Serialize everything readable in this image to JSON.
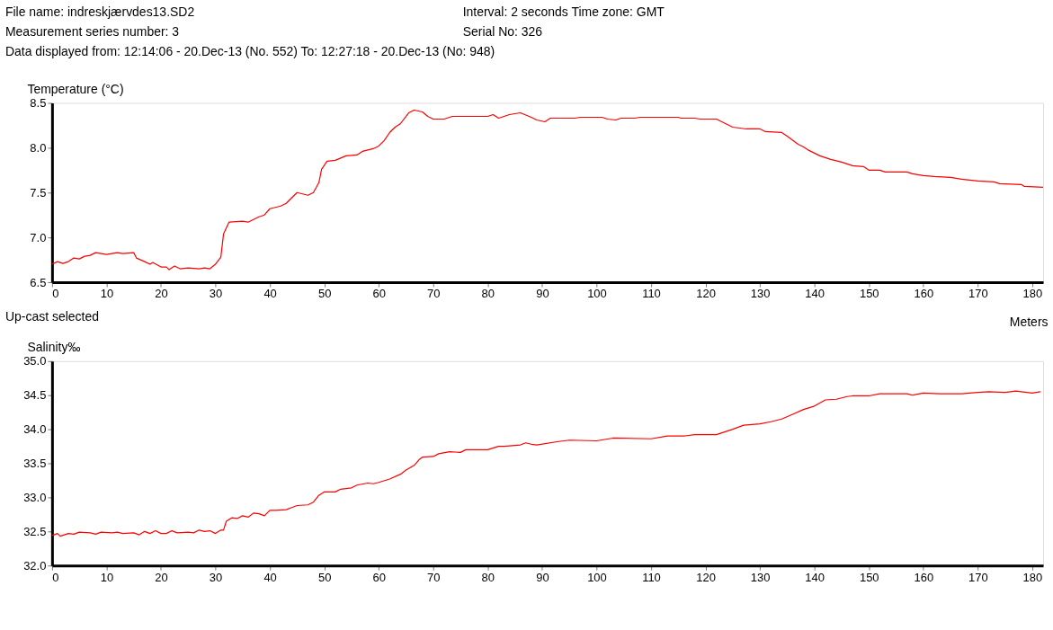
{
  "chart_data": [
    {
      "type": "line",
      "ylabel": "Temperature (°C)",
      "xlabel": "Meters",
      "xlim": [
        0,
        182
      ],
      "xticks": [
        0,
        10,
        20,
        30,
        40,
        50,
        60,
        70,
        80,
        90,
        100,
        110,
        120,
        130,
        140,
        150,
        160,
        170,
        180
      ],
      "ylim": [
        6.5,
        8.5
      ],
      "yticks": [
        {
          "value": 6.5,
          "label": "6.5"
        },
        {
          "value": 7,
          "label": "7.0"
        },
        {
          "value": 7.5,
          "label": "7.5"
        },
        {
          "value": 8,
          "label": "8.0"
        },
        {
          "value": 8.5,
          "label": "8.5"
        }
      ],
      "grid": false,
      "marker": "none",
      "annotations": [
        "File name: indreskjærvdes13.SD2",
        "Interval: 2 seconds    Time zone: GMT",
        "Measurement series number: 3",
        "Serial No: 326",
        "Data displayed from: 12:14:06 - 20.Dec-13 (No. 552)   To: 12:27:18 - 20.Dec-13 (No: 948)",
        "Up-cast selected"
      ],
      "x": [
        0,
        1,
        2,
        3,
        4,
        5,
        6,
        7,
        8,
        10,
        12,
        13,
        15,
        15.5,
        17,
        18,
        18.5,
        20,
        21,
        21.5,
        22.5,
        23.5,
        25,
        27,
        28,
        29,
        30,
        31,
        31.5,
        32.5,
        35,
        36,
        38,
        39,
        40,
        42,
        43,
        45,
        47,
        48,
        49,
        49.5,
        50.5,
        52,
        54,
        56,
        57,
        59,
        60,
        61,
        62,
        63,
        64,
        65.5,
        66.5,
        68,
        69,
        70,
        72,
        73.5,
        80,
        81,
        82,
        84,
        86,
        88,
        89,
        90.5,
        91.5,
        96,
        97,
        101,
        102,
        103.5,
        104.5,
        107,
        108,
        115,
        115.5,
        118,
        119,
        122,
        123,
        125,
        127.5,
        130,
        131,
        134,
        135,
        137,
        138,
        139,
        141,
        143,
        145,
        147,
        149,
        150,
        152,
        153,
        157,
        158,
        160,
        162,
        165,
        167,
        170,
        173,
        174,
        178,
        178.5,
        182
      ],
      "series": [
        {
          "color": "#ff0000",
          "values": [
            6.7,
            6.73,
            6.71,
            6.73,
            6.77,
            6.76,
            6.79,
            6.8,
            6.83,
            6.81,
            6.83,
            6.82,
            6.83,
            6.77,
            6.73,
            6.7,
            6.72,
            6.67,
            6.67,
            6.64,
            6.68,
            6.65,
            6.66,
            6.65,
            6.66,
            6.65,
            6.7,
            6.78,
            7.04,
            7.17,
            7.18,
            7.17,
            7.23,
            7.25,
            7.32,
            7.35,
            7.38,
            7.5,
            7.47,
            7.5,
            7.61,
            7.76,
            7.85,
            7.86,
            7.91,
            7.92,
            7.96,
            7.99,
            8.02,
            8.08,
            8.17,
            8.23,
            8.27,
            8.39,
            8.42,
            8.4,
            8.35,
            8.32,
            8.32,
            8.35,
            8.35,
            8.37,
            8.33,
            8.37,
            8.39,
            8.34,
            8.31,
            8.29,
            8.33,
            8.33,
            8.34,
            8.34,
            8.32,
            8.31,
            8.33,
            8.33,
            8.34,
            8.34,
            8.33,
            8.33,
            8.32,
            8.32,
            8.29,
            8.23,
            8.21,
            8.21,
            8.18,
            8.17,
            8.13,
            8.04,
            8.01,
            7.97,
            7.91,
            7.87,
            7.84,
            7.8,
            7.79,
            7.75,
            7.75,
            7.73,
            7.73,
            7.71,
            7.69,
            7.68,
            7.67,
            7.65,
            7.63,
            7.62,
            7.6,
            7.59,
            7.57,
            7.56
          ]
        }
      ]
    },
    {
      "type": "line",
      "ylabel": "Salinity‰",
      "xlim": [
        0,
        182
      ],
      "xticks": [
        0,
        10,
        20,
        30,
        40,
        50,
        60,
        70,
        80,
        90,
        100,
        110,
        120,
        130,
        140,
        150,
        160,
        170,
        180
      ],
      "ylim": [
        32,
        35
      ],
      "yticks": [
        {
          "value": 32,
          "label": "32.0"
        },
        {
          "value": 32.5,
          "label": "32.5"
        },
        {
          "value": 33,
          "label": "33.0"
        },
        {
          "value": 33.5,
          "label": "33.5"
        },
        {
          "value": 34,
          "label": "34.0"
        },
        {
          "value": 34.5,
          "label": "34.5"
        },
        {
          "value": 35,
          "label": "35.0"
        }
      ],
      "grid": false,
      "marker": "none",
      "x": [
        0,
        1,
        1.5,
        3,
        4,
        5,
        7,
        8,
        9,
        11,
        12,
        13,
        15,
        16,
        17,
        18,
        19,
        20,
        21,
        22,
        23,
        25,
        26,
        27,
        28,
        29,
        30,
        31,
        31.5,
        32,
        33,
        34,
        35,
        36,
        37,
        38,
        39,
        40,
        41,
        43,
        44,
        45,
        47,
        48,
        49,
        50,
        52,
        53,
        55,
        56,
        58,
        59,
        60,
        62,
        64,
        65,
        66.5,
        67.5,
        68,
        70,
        71,
        73,
        75,
        76,
        80,
        82,
        83,
        86,
        87,
        88,
        89,
        93,
        95,
        100,
        103,
        110,
        113,
        116,
        118,
        122,
        125,
        127,
        130,
        132,
        134,
        136,
        138,
        140,
        142,
        144,
        146,
        147,
        150,
        152,
        155,
        157,
        158,
        160,
        163,
        167,
        170,
        172,
        175,
        177,
        180,
        181.5
      ],
      "series": [
        {
          "color": "#ff0000",
          "values": [
            32.44,
            32.47,
            32.43,
            32.47,
            32.46,
            32.49,
            32.48,
            32.46,
            32.49,
            32.48,
            32.49,
            32.47,
            32.48,
            32.45,
            32.5,
            32.47,
            32.51,
            32.47,
            32.47,
            32.51,
            32.48,
            32.49,
            32.48,
            32.52,
            32.5,
            32.51,
            32.47,
            32.52,
            32.52,
            32.65,
            32.7,
            32.69,
            32.73,
            32.71,
            32.77,
            32.76,
            32.73,
            32.81,
            32.81,
            32.82,
            32.85,
            32.88,
            32.89,
            32.93,
            33.03,
            33.08,
            33.08,
            33.12,
            33.14,
            33.18,
            33.21,
            33.2,
            33.22,
            33.27,
            33.34,
            33.4,
            33.47,
            33.56,
            33.59,
            33.6,
            33.64,
            33.67,
            33.66,
            33.7,
            33.7,
            33.75,
            33.75,
            33.77,
            33.8,
            33.78,
            33.77,
            33.82,
            33.84,
            33.83,
            33.87,
            33.86,
            33.9,
            33.9,
            33.92,
            33.92,
            34.0,
            34.06,
            34.08,
            34.11,
            34.15,
            34.22,
            34.29,
            34.34,
            34.43,
            34.44,
            34.48,
            34.49,
            34.49,
            34.52,
            34.52,
            34.52,
            34.5,
            34.53,
            34.52,
            34.52,
            34.54,
            34.55,
            34.54,
            34.56,
            34.53,
            34.55
          ]
        }
      ]
    }
  ]
}
